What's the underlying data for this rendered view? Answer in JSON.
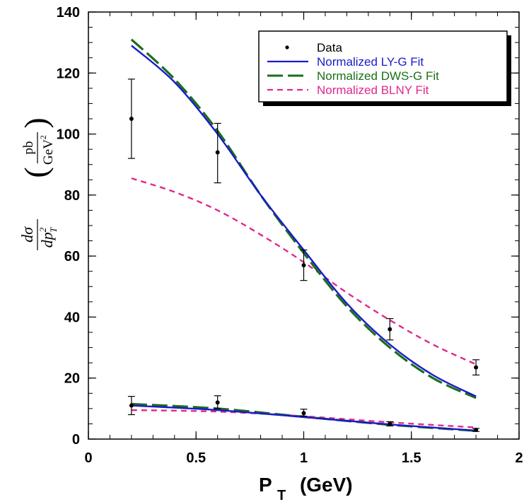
{
  "chart_data": {
    "type": "line",
    "xlabel_main": "P",
    "xlabel_sub": "T",
    "xlabel_unit": "(GeV)",
    "ylabel": {
      "numerator": "dσ",
      "denominator": "dp",
      "denominator_sup": "2",
      "denominator_sub": "T",
      "unit_numerator": "pb",
      "unit_denominator": "GeV",
      "unit_denominator_sup": "2"
    },
    "xlim": [
      0,
      2
    ],
    "ylim": [
      0,
      140
    ],
    "x_ticks": [
      "0",
      "0.5",
      "1",
      "1.5",
      "2"
    ],
    "x_tick_values": [
      0,
      0.5,
      1,
      1.5,
      2
    ],
    "y_ticks": [
      "0",
      "20",
      "40",
      "60",
      "80",
      "100",
      "120",
      "140"
    ],
    "y_tick_values": [
      0,
      20,
      40,
      60,
      80,
      100,
      120,
      140
    ],
    "legend": [
      {
        "label": "Data",
        "color": "#000000",
        "style": "point"
      },
      {
        "label": "Normalized LY-G Fit",
        "color": "#1a1acc",
        "style": "solid"
      },
      {
        "label": "Normalized DWS-G Fit",
        "color": "#1a6e1a",
        "style": "longdash"
      },
      {
        "label": "Normalized BLNY Fit",
        "color": "#e0288c",
        "style": "shortdash"
      }
    ],
    "data_sets": [
      {
        "name": "Data",
        "points": [
          {
            "x": 0.2,
            "y": 105,
            "ylo": 92,
            "yhi": 118
          },
          {
            "x": 0.6,
            "y": 94,
            "ylo": 84,
            "yhi": 103.5
          },
          {
            "x": 1.0,
            "y": 57,
            "ylo": 52,
            "yhi": 62
          },
          {
            "x": 1.4,
            "y": 36,
            "ylo": 32.5,
            "yhi": 39.5
          },
          {
            "x": 1.8,
            "y": 23.5,
            "ylo": 21,
            "yhi": 26
          }
        ]
      },
      {
        "name": "Data",
        "points": [
          {
            "x": 0.2,
            "y": 11,
            "ylo": 8,
            "yhi": 14
          },
          {
            "x": 0.6,
            "y": 12,
            "ylo": 10,
            "yhi": 14.2
          },
          {
            "x": 1.0,
            "y": 8.5,
            "ylo": 7.5,
            "yhi": 9.8
          },
          {
            "x": 1.4,
            "y": 5,
            "ylo": 4.3,
            "yhi": 5.7
          },
          {
            "x": 1.8,
            "y": 3,
            "ylo": 2.5,
            "yhi": 3.5
          }
        ]
      }
    ],
    "series": [
      {
        "name": "Normalized LY-G Fit",
        "color": "#1a1acc",
        "style": "solid",
        "x": [
          0.2,
          0.4,
          0.6,
          0.8,
          1.0,
          1.2,
          1.4,
          1.6,
          1.8
        ],
        "y": [
          129,
          117,
          100,
          80,
          62,
          44.5,
          31,
          21,
          14
        ]
      },
      {
        "name": "Normalized DWS-G Fit",
        "color": "#1a6e1a",
        "style": "longdash",
        "x": [
          0.2,
          0.4,
          0.6,
          0.8,
          1.0,
          1.2,
          1.4,
          1.6,
          1.8
        ],
        "y": [
          131,
          118,
          101,
          80,
          61,
          43.5,
          30,
          20,
          13.5
        ]
      },
      {
        "name": "Normalized BLNY Fit",
        "color": "#e0288c",
        "style": "shortdash",
        "x": [
          0.2,
          0.4,
          0.6,
          0.8,
          1.0,
          1.2,
          1.4,
          1.6,
          1.8
        ],
        "y": [
          85.5,
          81,
          75,
          67,
          58,
          48,
          39,
          31,
          24.5
        ]
      },
      {
        "name": "Normalized LY-G Fit",
        "color": "#1a1acc",
        "style": "solid",
        "x": [
          0.2,
          0.6,
          1.0,
          1.4,
          1.8
        ],
        "y": [
          11,
          9.5,
          7.2,
          4.8,
          2.8
        ]
      },
      {
        "name": "Normalized DWS-G Fit",
        "color": "#1a6e1a",
        "style": "longdash",
        "x": [
          0.2,
          0.6,
          1.0,
          1.4,
          1.8
        ],
        "y": [
          11.5,
          10,
          7.3,
          4.7,
          2.7
        ]
      },
      {
        "name": "Normalized BLNY Fit",
        "color": "#e0288c",
        "style": "shortdash",
        "x": [
          0.2,
          0.6,
          1.0,
          1.4,
          1.8
        ],
        "y": [
          9.5,
          9,
          7.5,
          5.5,
          3.8
        ]
      }
    ]
  }
}
